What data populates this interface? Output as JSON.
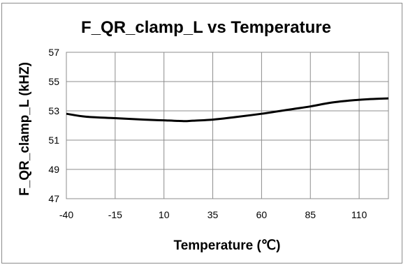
{
  "chart_data": {
    "type": "line",
    "title": "F_QR_clamp_L vs Temperature",
    "xlabel": "Temperature (℃)",
    "ylabel": "F_QR_clamp_L (kHZ)",
    "xlim": [
      -40,
      125
    ],
    "ylim": [
      47,
      57
    ],
    "x_ticks": [
      -40,
      -15,
      10,
      35,
      60,
      85,
      110
    ],
    "y_ticks": [
      47,
      49,
      51,
      53,
      55,
      57
    ],
    "grid": true,
    "legend": "none",
    "line_color": "#000000",
    "series": [
      {
        "x": [
          -40,
          -30,
          -15,
          0,
          10,
          20,
          25,
          35,
          45,
          60,
          75,
          85,
          95,
          105,
          115,
          125
        ],
        "values": [
          52.8,
          52.6,
          52.5,
          52.4,
          52.35,
          52.3,
          52.33,
          52.4,
          52.55,
          52.8,
          53.1,
          53.3,
          53.55,
          53.7,
          53.8,
          53.85
        ]
      }
    ]
  }
}
